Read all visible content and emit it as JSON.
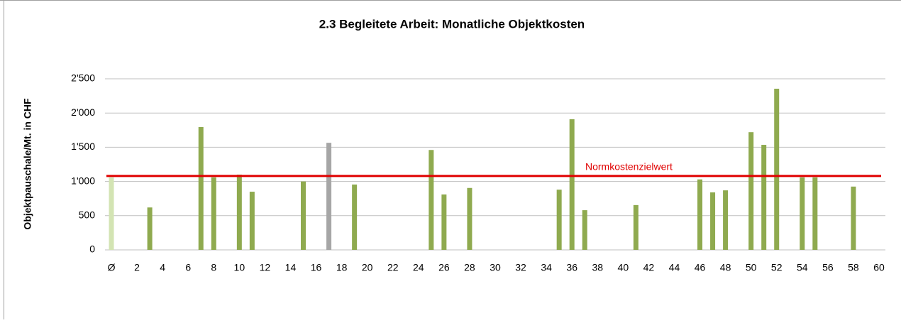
{
  "chart_data": {
    "type": "bar",
    "title": "2.3  Begleitete Arbeit: Monatliche Objektkosten",
    "y_label": "Objektpauschale/Mt. in CHF",
    "categories": [
      "Ø",
      null,
      "2",
      null,
      "4",
      null,
      "6",
      null,
      "8",
      null,
      "10",
      null,
      "12",
      null,
      "14",
      null,
      "16",
      null,
      "18",
      null,
      "20",
      null,
      "22",
      null,
      "24",
      null,
      "26",
      null,
      "28",
      null,
      "30",
      null,
      "32",
      null,
      "34",
      null,
      "36",
      null,
      "38",
      null,
      "40",
      null,
      "42",
      null,
      "44",
      null,
      "46",
      null,
      "48",
      null,
      "50",
      null,
      "52",
      null,
      "54",
      null,
      "56",
      null,
      "58",
      null,
      "60"
    ],
    "values": [
      1060,
      null,
      null,
      620,
      null,
      null,
      null,
      1795,
      1060,
      null,
      1100,
      850,
      null,
      null,
      null,
      1000,
      null,
      1565,
      null,
      955,
      null,
      null,
      null,
      null,
      null,
      1460,
      810,
      null,
      905,
      null,
      null,
      null,
      null,
      null,
      null,
      880,
      1910,
      580,
      null,
      null,
      null,
      655,
      null,
      null,
      null,
      null,
      1030,
      840,
      870,
      null,
      1720,
      1535,
      2355,
      null,
      1060,
      1060,
      null,
      null,
      925,
      null,
      null
    ],
    "color": "#8faa4f",
    "average_color": "#d3e4b3",
    "highlight_index_color": {
      "index": 17,
      "color": "#a6a6a6"
    },
    "ylim": [
      0,
      2500
    ],
    "yticks": [
      0,
      500,
      {
        "value": 1000,
        "label": "1'000"
      },
      {
        "value": 1500,
        "label": "1'500"
      },
      {
        "value": 2000,
        "label": "2'000"
      },
      {
        "value": 2500,
        "label": "2'500"
      }
    ],
    "grid": true,
    "reference_line": {
      "value": 1080,
      "label": "Normkostenzielwert",
      "color": "#e00000"
    }
  }
}
